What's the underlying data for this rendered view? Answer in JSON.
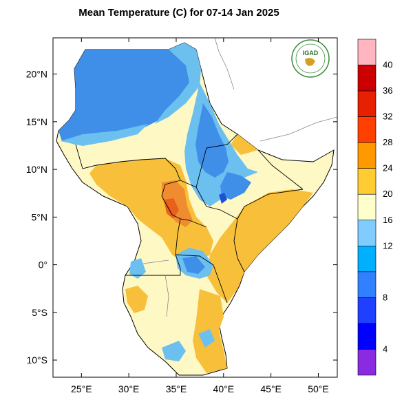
{
  "title": "Mean Temperature (C) for 07-14 Jan 2025",
  "logo_text": "IGAD",
  "map": {
    "lon_ticks": [
      "25°E",
      "30°E",
      "35°E",
      "40°E",
      "45°E",
      "50°E"
    ],
    "lat_ticks": [
      "20°N",
      "15°N",
      "10°N",
      "5°N",
      "0°",
      "5°S",
      "10°S"
    ],
    "lon_range": [
      22,
      52
    ],
    "lat_range": [
      -11.8,
      23.8
    ],
    "lon_values": [
      25,
      30,
      35,
      40,
      45,
      50
    ],
    "lat_values": [
      20,
      15,
      10,
      5,
      0,
      -5,
      -10
    ]
  },
  "colorbar": {
    "labels": [
      "40",
      "36",
      "32",
      "28",
      "24",
      "20",
      "16",
      "12",
      "8",
      "4"
    ],
    "colors": [
      "#ffb6c1",
      "#cc0000",
      "#e62000",
      "#ff4000",
      "#ff9900",
      "#ffcc33",
      "#ffffcc",
      "#80ccff",
      "#00b0ff",
      "#3080ff",
      "#2040ff",
      "#0000ff",
      "#8a2be2"
    ]
  },
  "colors": {
    "cold_blue": "#3f8fe8",
    "cool_blue": "#6cc0f0",
    "mild": "#fdf8c4",
    "warm": "#f7bf3a",
    "hot": "#f08c30",
    "very_hot": "#e8601c",
    "deep_blue": "#1f4fd8"
  }
}
